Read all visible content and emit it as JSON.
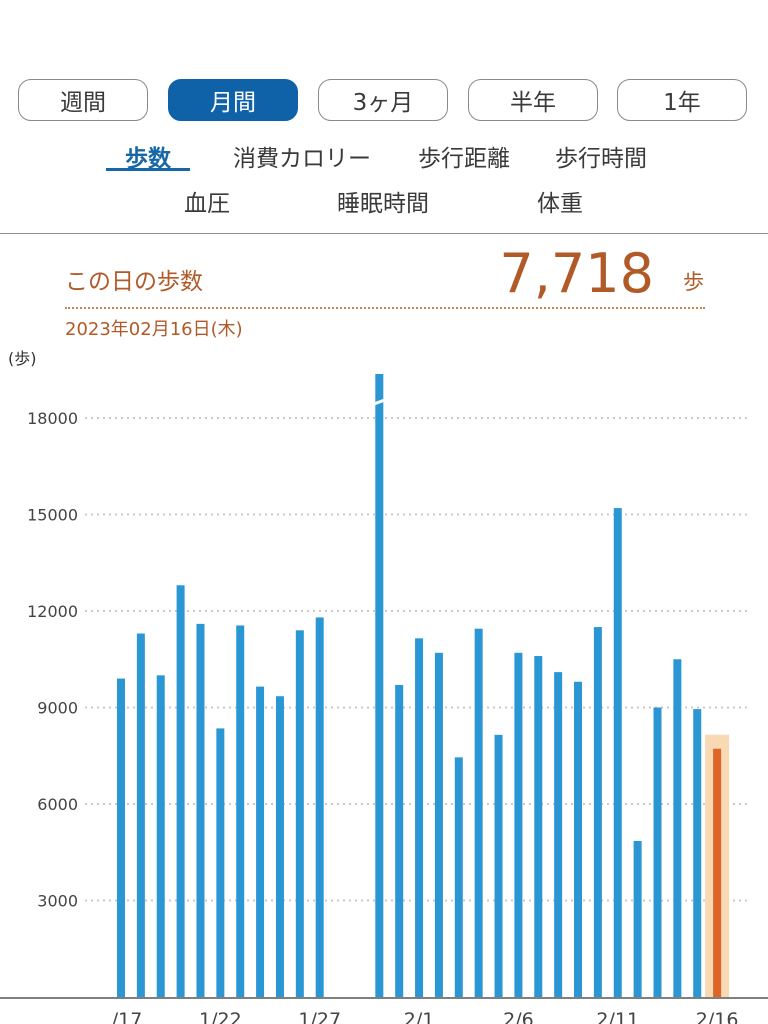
{
  "period_tabs": [
    {
      "label": "週間",
      "active": false
    },
    {
      "label": "月間",
      "active": true
    },
    {
      "label": "3ヶ月",
      "active": false
    },
    {
      "label": "半年",
      "active": false
    },
    {
      "label": "1年",
      "active": false
    }
  ],
  "metric_tabs": [
    {
      "label": "歩数",
      "active": true
    },
    {
      "label": "消費カロリー",
      "active": false
    },
    {
      "label": "歩行距離",
      "active": false
    },
    {
      "label": "歩行時間",
      "active": false
    },
    {
      "label": "血圧",
      "active": false
    },
    {
      "label": "睡眠時間",
      "active": false
    },
    {
      "label": "体重",
      "active": false
    }
  ],
  "summary": {
    "label": "この日の歩数",
    "value": "7,718",
    "unit": "歩",
    "date": "2023年02月16日(木)"
  },
  "chart_data": {
    "type": "bar",
    "ylabel": "(歩)",
    "yticks": [
      3000,
      6000,
      9000,
      12000,
      15000,
      18000
    ],
    "ylim": [
      0,
      18000
    ],
    "grid": true,
    "x_tick_labels": [
      "/17",
      "1/22",
      "1/27",
      "2/1",
      "2/6",
      "2/11",
      "2/16"
    ],
    "x": [
      "1/17",
      "1/18",
      "1/19",
      "1/20",
      "1/21",
      "1/22",
      "1/23",
      "1/24",
      "1/25",
      "1/26",
      "1/27",
      "1/28",
      "1/29",
      "1/30",
      "1/31",
      "2/1",
      "2/2",
      "2/3",
      "2/4",
      "2/5",
      "2/6",
      "2/7",
      "2/8",
      "2/9",
      "2/10",
      "2/11",
      "2/12",
      "2/13",
      "2/14",
      "2/15",
      "2/16"
    ],
    "values": [
      9900,
      11300,
      10000,
      12800,
      11600,
      8350,
      11550,
      9650,
      9350,
      11400,
      11800,
      null,
      null,
      19500,
      9700,
      11150,
      10700,
      7450,
      11450,
      8150,
      10700,
      10600,
      10100,
      9800,
      11500,
      15200,
      4850,
      9000,
      10500,
      8950,
      7718
    ],
    "clipped": [
      "1/30"
    ],
    "selected": "2/16",
    "colors": {
      "bar": "#2a97d4",
      "selected": "#dd6528",
      "selected_bg": "#f8d9b4",
      "grid": "#c9c9c9",
      "axis": "#555555"
    }
  }
}
